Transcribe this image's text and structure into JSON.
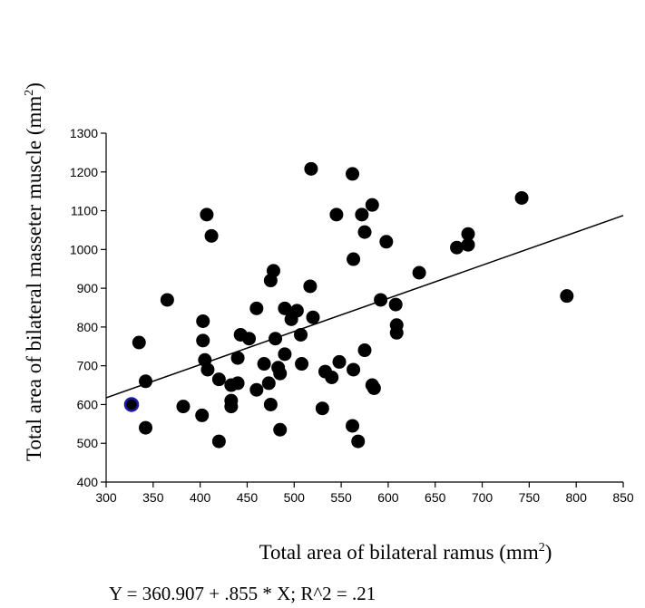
{
  "chart_data": {
    "type": "scatter",
    "xlabel": "Total area of bilateral ramus (mm",
    "xlabel_sup": "2",
    "xlabel_end": ")",
    "ylabel": "Total area of bilateral masseter muscle (mm",
    "ylabel_sup": "2",
    "ylabel_end": ")",
    "equation": "Y = 360.907 + .855 * X; R^2 = .21",
    "xlim": [
      300,
      850
    ],
    "ylim": [
      400,
      1300
    ],
    "xticks": [
      300,
      350,
      400,
      450,
      500,
      550,
      600,
      650,
      700,
      750,
      800,
      850
    ],
    "yticks": [
      400,
      500,
      600,
      700,
      800,
      900,
      1000,
      1100,
      1200,
      1300
    ],
    "grid": false,
    "regression": {
      "intercept": 360.907,
      "slope": 0.855
    },
    "point_color": "#000000",
    "highlight_color": "#1a1aa8",
    "points": [
      {
        "x": 335,
        "y": 760
      },
      {
        "x": 342,
        "y": 660
      },
      {
        "x": 342,
        "y": 540
      },
      {
        "x": 365,
        "y": 870
      },
      {
        "x": 382,
        "y": 595
      },
      {
        "x": 402,
        "y": 572
      },
      {
        "x": 403,
        "y": 815
      },
      {
        "x": 403,
        "y": 765
      },
      {
        "x": 405,
        "y": 715
      },
      {
        "x": 407,
        "y": 1090
      },
      {
        "x": 408,
        "y": 690
      },
      {
        "x": 412,
        "y": 1035
      },
      {
        "x": 420,
        "y": 665
      },
      {
        "x": 420,
        "y": 505
      },
      {
        "x": 433,
        "y": 650
      },
      {
        "x": 433,
        "y": 610
      },
      {
        "x": 433,
        "y": 595
      },
      {
        "x": 440,
        "y": 720
      },
      {
        "x": 440,
        "y": 655
      },
      {
        "x": 443,
        "y": 780
      },
      {
        "x": 452,
        "y": 770
      },
      {
        "x": 460,
        "y": 848
      },
      {
        "x": 460,
        "y": 638
      },
      {
        "x": 468,
        "y": 705
      },
      {
        "x": 473,
        "y": 655
      },
      {
        "x": 475,
        "y": 920
      },
      {
        "x": 475,
        "y": 600
      },
      {
        "x": 478,
        "y": 945
      },
      {
        "x": 480,
        "y": 770
      },
      {
        "x": 483,
        "y": 695
      },
      {
        "x": 485,
        "y": 680
      },
      {
        "x": 485,
        "y": 535
      },
      {
        "x": 490,
        "y": 848
      },
      {
        "x": 490,
        "y": 730
      },
      {
        "x": 497,
        "y": 820
      },
      {
        "x": 498,
        "y": 835
      },
      {
        "x": 503,
        "y": 842
      },
      {
        "x": 507,
        "y": 780
      },
      {
        "x": 508,
        "y": 705
      },
      {
        "x": 517,
        "y": 905
      },
      {
        "x": 518,
        "y": 1208
      },
      {
        "x": 520,
        "y": 825
      },
      {
        "x": 530,
        "y": 590
      },
      {
        "x": 533,
        "y": 685
      },
      {
        "x": 540,
        "y": 670
      },
      {
        "x": 545,
        "y": 1090
      },
      {
        "x": 548,
        "y": 710
      },
      {
        "x": 562,
        "y": 1195
      },
      {
        "x": 562,
        "y": 545
      },
      {
        "x": 563,
        "y": 975
      },
      {
        "x": 563,
        "y": 690
      },
      {
        "x": 568,
        "y": 505
      },
      {
        "x": 572,
        "y": 1090
      },
      {
        "x": 575,
        "y": 1045
      },
      {
        "x": 575,
        "y": 740
      },
      {
        "x": 583,
        "y": 1115
      },
      {
        "x": 583,
        "y": 650
      },
      {
        "x": 585,
        "y": 642
      },
      {
        "x": 592,
        "y": 870
      },
      {
        "x": 598,
        "y": 1020
      },
      {
        "x": 608,
        "y": 858
      },
      {
        "x": 609,
        "y": 805
      },
      {
        "x": 609,
        "y": 785
      },
      {
        "x": 633,
        "y": 940
      },
      {
        "x": 673,
        "y": 1005
      },
      {
        "x": 685,
        "y": 1040
      },
      {
        "x": 685,
        "y": 1012
      },
      {
        "x": 742,
        "y": 1133
      },
      {
        "x": 790,
        "y": 880
      }
    ],
    "highlight_points": [
      {
        "x": 327,
        "y": 600
      }
    ]
  }
}
